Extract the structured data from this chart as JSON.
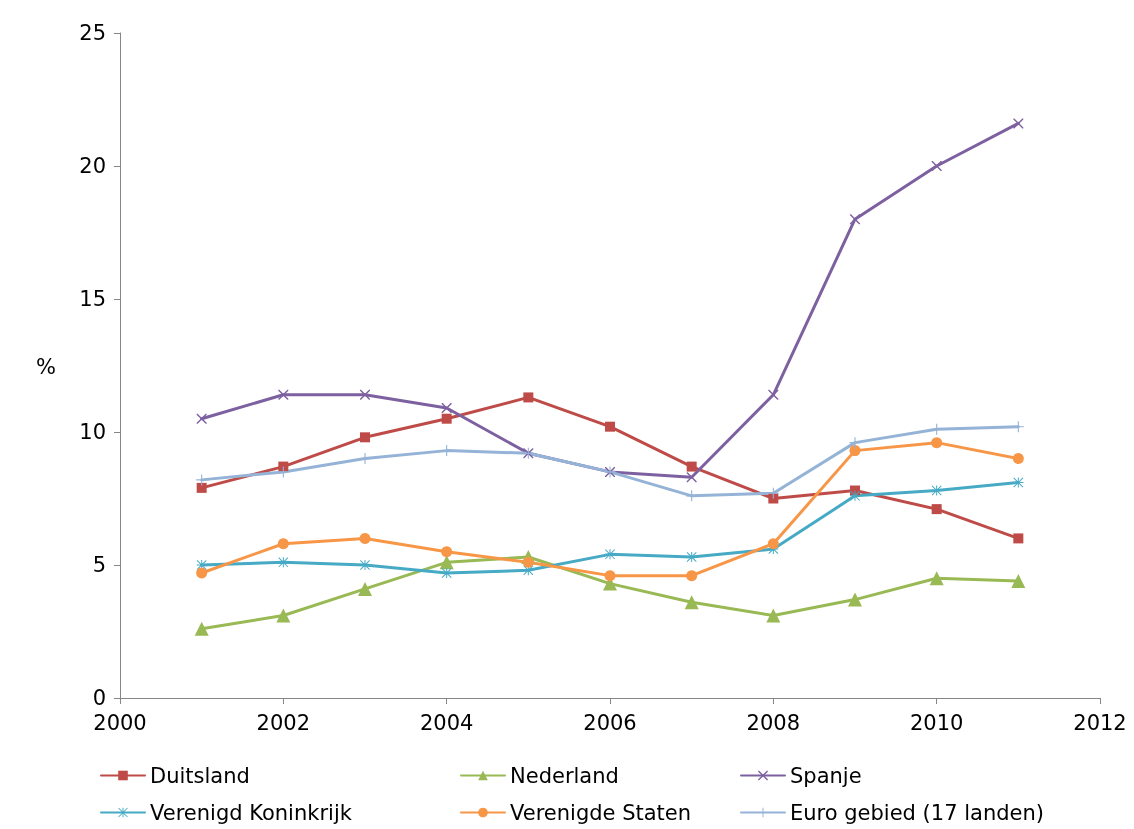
{
  "chart_data": {
    "type": "line",
    "ylabel": "%",
    "x": [
      2001,
      2002,
      2003,
      2004,
      2005,
      2006,
      2007,
      2008,
      2009,
      2010,
      2011
    ],
    "xlim": [
      2000,
      2012
    ],
    "xticks": [
      2000,
      2002,
      2004,
      2006,
      2008,
      2010,
      2012
    ],
    "ylim": [
      0,
      25
    ],
    "yticks": [
      0,
      5,
      10,
      15,
      20,
      25
    ],
    "grid": false,
    "legend": "bottom",
    "line_style": "solid",
    "series": [
      {
        "name": "Duitsland",
        "color": "#be4b48",
        "marker": "square",
        "values": [
          7.9,
          8.7,
          9.8,
          10.5,
          11.3,
          10.2,
          8.7,
          7.5,
          7.8,
          7.1,
          6.0
        ]
      },
      {
        "name": "Nederland",
        "color": "#98b954",
        "marker": "triangle",
        "values": [
          2.6,
          3.1,
          4.1,
          5.1,
          5.3,
          4.3,
          3.6,
          3.1,
          3.7,
          4.5,
          4.4
        ]
      },
      {
        "name": "Spanje",
        "color": "#7d60a0",
        "marker": "cross",
        "values": [
          10.5,
          11.4,
          11.4,
          10.9,
          9.2,
          8.5,
          8.3,
          11.4,
          18.0,
          20.0,
          21.6
        ]
      },
      {
        "name": "Verenigd Koninkrijk",
        "color": "#46aac5",
        "marker": "star",
        "values": [
          5.0,
          5.1,
          5.0,
          4.7,
          4.8,
          5.4,
          5.3,
          5.6,
          7.6,
          7.8,
          8.1
        ]
      },
      {
        "name": "Verenigde Staten",
        "color": "#f79646",
        "marker": "circle",
        "values": [
          4.7,
          5.8,
          6.0,
          5.5,
          5.1,
          4.6,
          4.6,
          5.8,
          9.3,
          9.6,
          9.0
        ]
      },
      {
        "name": "Euro gebied (17 landen)",
        "color": "#95b3d7",
        "marker": "plus",
        "values": [
          8.2,
          8.5,
          9.0,
          9.3,
          9.2,
          8.5,
          7.6,
          7.7,
          9.6,
          10.1,
          10.2
        ]
      }
    ]
  }
}
